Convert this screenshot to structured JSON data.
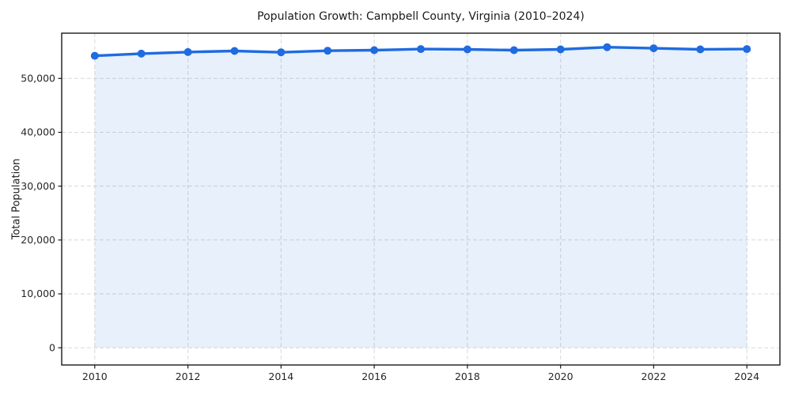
{
  "chart_data": {
    "type": "line",
    "title": "Population Growth: Campbell County, Virginia (2010–2024)",
    "xlabel": "",
    "ylabel": "Total Population",
    "x": [
      2010,
      2011,
      2012,
      2013,
      2014,
      2015,
      2016,
      2017,
      2018,
      2019,
      2020,
      2021,
      2022,
      2023,
      2024
    ],
    "series": [
      {
        "name": "Total Population",
        "values": [
          54200,
          54600,
          54900,
          55100,
          54850,
          55150,
          55250,
          55450,
          55400,
          55250,
          55400,
          55800,
          55600,
          55400,
          55450
        ]
      }
    ],
    "x_ticks": [
      2010,
      2012,
      2014,
      2016,
      2018,
      2020,
      2022,
      2024
    ],
    "x_tick_labels": [
      "2010",
      "2012",
      "2014",
      "2016",
      "2018",
      "2020",
      "2022",
      "2024"
    ],
    "y_ticks": [
      0,
      10000,
      20000,
      30000,
      40000,
      50000
    ],
    "y_tick_labels": [
      "0",
      "10,000",
      "20,000",
      "30,000",
      "40,000",
      "50,000"
    ],
    "xlim": [
      2009.29,
      2024.71
    ],
    "ylim": [
      -3200,
      58400
    ],
    "grid": true,
    "grid_style": "dashed",
    "legend": false,
    "marker": "circle",
    "area_fill": true,
    "colors": {
      "line": "#1f6be0",
      "marker": "#1f6be0",
      "fill": "#1f6be0",
      "fill_opacity": 0.1,
      "grid": "#d8d8d8",
      "axis": "#1a1a1a",
      "background": "#ffffff",
      "tick_text": "#262626"
    }
  }
}
